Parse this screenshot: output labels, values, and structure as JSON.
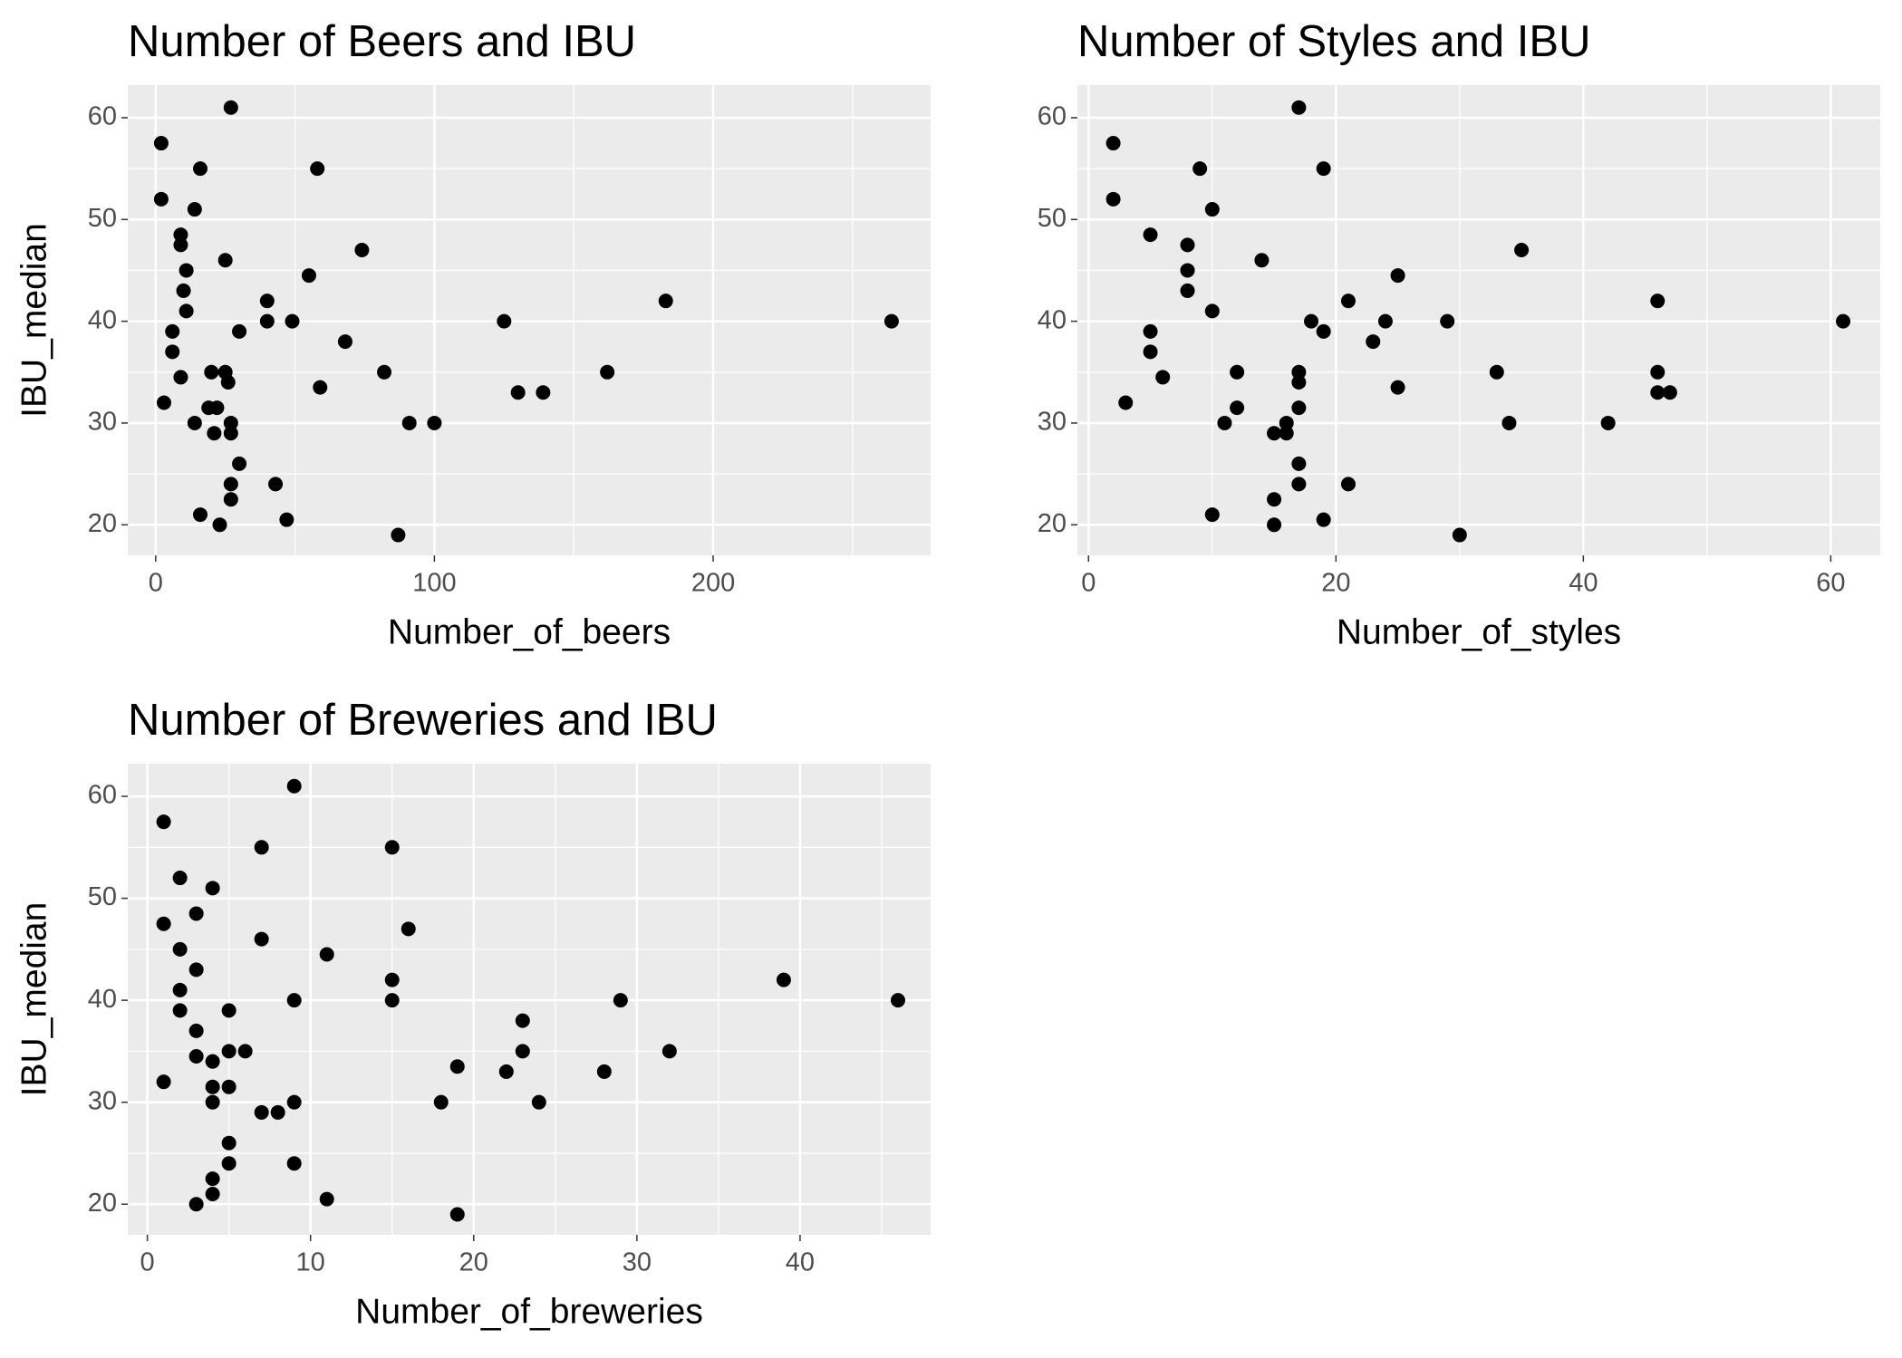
{
  "chart_data": [
    {
      "type": "scatter",
      "title": "Number of Beers and IBU",
      "x_label": "Number_of_beers",
      "y_label": "IBU_median",
      "color": "#000000",
      "grid": true,
      "xlim": [
        -10,
        278
      ],
      "ylim": [
        17,
        63.2
      ],
      "xticks": [
        0,
        100,
        200
      ],
      "yticks": [
        20,
        30,
        40,
        50,
        60
      ],
      "x": [
        27,
        2,
        2,
        16,
        58,
        14,
        9,
        9,
        74,
        11,
        25,
        55,
        10,
        40,
        183,
        11,
        40,
        49,
        125,
        264,
        6,
        30,
        68,
        6,
        20,
        25,
        82,
        162,
        9,
        26,
        59,
        130,
        139,
        3,
        19,
        22,
        14,
        27,
        91,
        100,
        21,
        27,
        30,
        27,
        43,
        27,
        16,
        47,
        23,
        87
      ],
      "values": [
        61,
        57.5,
        52,
        55,
        55,
        51,
        48.5,
        47.5,
        47,
        45,
        46,
        44.5,
        43,
        42,
        42,
        41,
        40,
        40,
        40,
        40,
        39,
        39,
        38,
        37,
        35,
        35,
        35,
        35,
        34.5,
        34,
        33.5,
        33,
        33,
        32,
        31.5,
        31.5,
        30,
        30,
        30,
        30,
        29,
        29,
        26,
        24,
        24,
        22.5,
        21,
        20.5,
        20,
        19
      ]
    },
    {
      "type": "scatter",
      "title": "Number of Styles and IBU",
      "x_label": "Number_of_styles",
      "y_label": "IBU_median",
      "color": "#000000",
      "grid": true,
      "xlim": [
        -0.9,
        64
      ],
      "ylim": [
        17,
        63.2
      ],
      "xticks": [
        0,
        20,
        40,
        60
      ],
      "yticks": [
        20,
        30,
        40,
        50,
        60
      ],
      "x": [
        17,
        2,
        2,
        9,
        19,
        10,
        5,
        8,
        35,
        14,
        8,
        25,
        8,
        21,
        46,
        10,
        18,
        24,
        29,
        61,
        5,
        19,
        23,
        5,
        12,
        17,
        33,
        46,
        6,
        17,
        25,
        46,
        47,
        3,
        12,
        17,
        11,
        34,
        42,
        16,
        15,
        16,
        17,
        17,
        21,
        15,
        10,
        19,
        15,
        30
      ],
      "values": [
        61,
        57.5,
        52,
        55,
        55,
        51,
        48.5,
        47.5,
        47,
        46,
        45,
        44.5,
        43,
        42,
        42,
        41,
        40,
        40,
        40,
        40,
        39,
        39,
        38,
        37,
        35,
        35,
        35,
        35,
        34.5,
        34,
        33.5,
        33,
        33,
        32,
        31.5,
        31.5,
        30,
        30,
        30,
        30,
        29,
        29,
        26,
        24,
        24,
        22.5,
        21,
        20.5,
        20,
        19
      ]
    },
    {
      "type": "scatter",
      "title": "Number of Breweries and IBU",
      "x_label": "Number_of_breweries",
      "y_label": "IBU_median",
      "color": "#000000",
      "grid": true,
      "xlim": [
        -1.2,
        48
      ],
      "ylim": [
        17,
        63.2
      ],
      "xticks": [
        0,
        10,
        20,
        30,
        40
      ],
      "yticks": [
        20,
        30,
        40,
        50,
        60
      ],
      "x": [
        9,
        1,
        7,
        15,
        2,
        4,
        3,
        1,
        16,
        7,
        2,
        11,
        3,
        15,
        39,
        2,
        9,
        15,
        29,
        46,
        2,
        5,
        23,
        3,
        5,
        6,
        23,
        32,
        3,
        4,
        19,
        22,
        28,
        1,
        4,
        5,
        4,
        9,
        18,
        24,
        7,
        8,
        5,
        5,
        9,
        4,
        4,
        11,
        3,
        19
      ],
      "values": [
        61,
        57.5,
        55,
        55,
        52,
        51,
        48.5,
        47.5,
        47,
        46,
        45,
        44.5,
        43,
        42,
        42,
        41,
        40,
        40,
        40,
        40,
        39,
        39,
        38,
        37,
        35,
        35,
        35,
        35,
        34.5,
        34,
        33.5,
        33,
        33,
        32,
        31.5,
        31.5,
        30,
        30,
        30,
        30,
        29,
        29,
        26,
        24,
        24,
        22.5,
        21,
        20.5,
        20,
        19
      ]
    }
  ]
}
